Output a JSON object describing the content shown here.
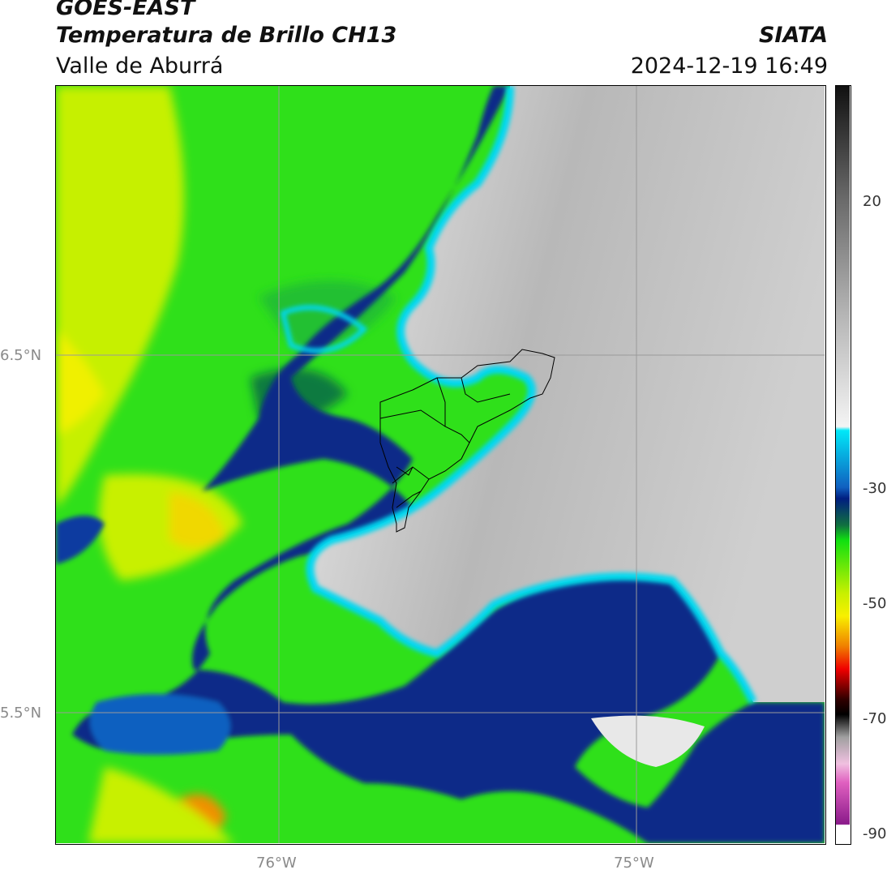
{
  "header": {
    "title_line1": "GOES-EAST",
    "title_line2": "Temperatura de Brillo CH13",
    "subtitle": "Valle de Aburrá",
    "brand": "SIATA",
    "timestamp": "2024-12-19 16:49"
  },
  "map": {
    "lat_labels": [
      "6.5°N",
      "5.5°N"
    ],
    "lon_labels": [
      "76°W",
      "75°W"
    ]
  },
  "colorbar": {
    "tick_labels": [
      "20",
      "-30",
      "-50",
      "-70",
      "-90"
    ]
  },
  "colors": {
    "yellow_green": "#c8f000",
    "green": "#22dd22",
    "dark_blue": "#0a2a88",
    "cyan": "#00dcf0",
    "light_gray": "#e6e6e6",
    "gray": "#a0a0a0"
  }
}
